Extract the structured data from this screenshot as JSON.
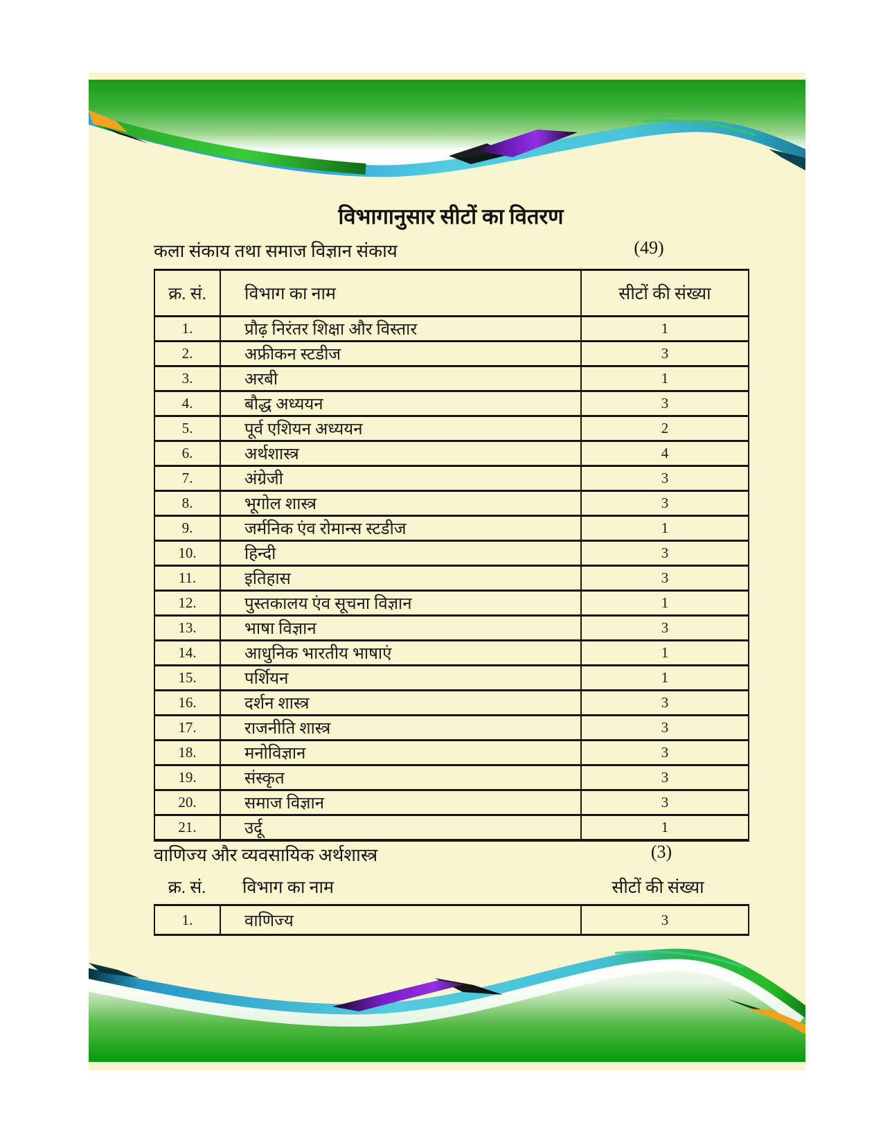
{
  "page": {
    "title": "विभागानुसार सीटों का वितरण",
    "section1": {
      "heading": "कला संकाय तथा समाज विज्ञान संकाय",
      "total": "(49)",
      "columns": [
        "क्र. सं.",
        "विभाग का नाम",
        "सीटों की संख्या"
      ],
      "rows": [
        [
          "1.",
          "प्रौढ़ निरंतर शिक्षा और विस्तार",
          "1"
        ],
        [
          "2.",
          "अफ्रीकन स्टडीज",
          "3"
        ],
        [
          "3.",
          "अरबी",
          "1"
        ],
        [
          "4.",
          "बौद्ध अध्ययन",
          "3"
        ],
        [
          "5.",
          "पूर्व एशियन अध्ययन",
          "2"
        ],
        [
          "6.",
          "अर्थशास्त्र",
          "4"
        ],
        [
          "7.",
          "अंग्रेजी",
          "3"
        ],
        [
          "8.",
          "भूगोल शास्त्र",
          "3"
        ],
        [
          "9.",
          "जर्मनिक एंव रोमान्स स्टडीज",
          "1"
        ],
        [
          "10.",
          "हिन्दी",
          "3"
        ],
        [
          "11.",
          "इतिहास",
          "3"
        ],
        [
          "12.",
          "पुस्तकालय एंव सूचना विज्ञान",
          "1"
        ],
        [
          "13.",
          "भाषा विज्ञान",
          "3"
        ],
        [
          "14.",
          "आधुनिक भारतीय भाषाएं",
          "1"
        ],
        [
          "15.",
          "पर्शियन",
          "1"
        ],
        [
          "16.",
          "दर्शन शास्त्र",
          "3"
        ],
        [
          "17.",
          "राजनीति शास्त्र",
          "3"
        ],
        [
          "18.",
          "मनोविज्ञान",
          "3"
        ],
        [
          "19.",
          "संस्कृत",
          "3"
        ],
        [
          "20.",
          "समाज विज्ञान",
          "3"
        ],
        [
          "21.",
          "उर्दू",
          "1"
        ]
      ]
    },
    "section2": {
      "heading": "वाणिज्य और व्यवसायिक अर्थशास्त्र",
      "total": "(3)",
      "columns": [
        "क्र. सं.",
        "विभाग का नाम",
        "सीटों की संख्या"
      ],
      "rows": [
        [
          "1.",
          "वाणिज्य",
          "3"
        ]
      ]
    },
    "colors": {
      "page_background": "#F9F5CF",
      "band_green": "#149C14",
      "ribbon_cyan": "#54CCE0",
      "ribbon_blue": "#2F9FD8",
      "accent_purple": "#9130E2",
      "accent_orange": "#F4A41E",
      "table_border": "#161616",
      "text": "#1A1A1A"
    }
  }
}
